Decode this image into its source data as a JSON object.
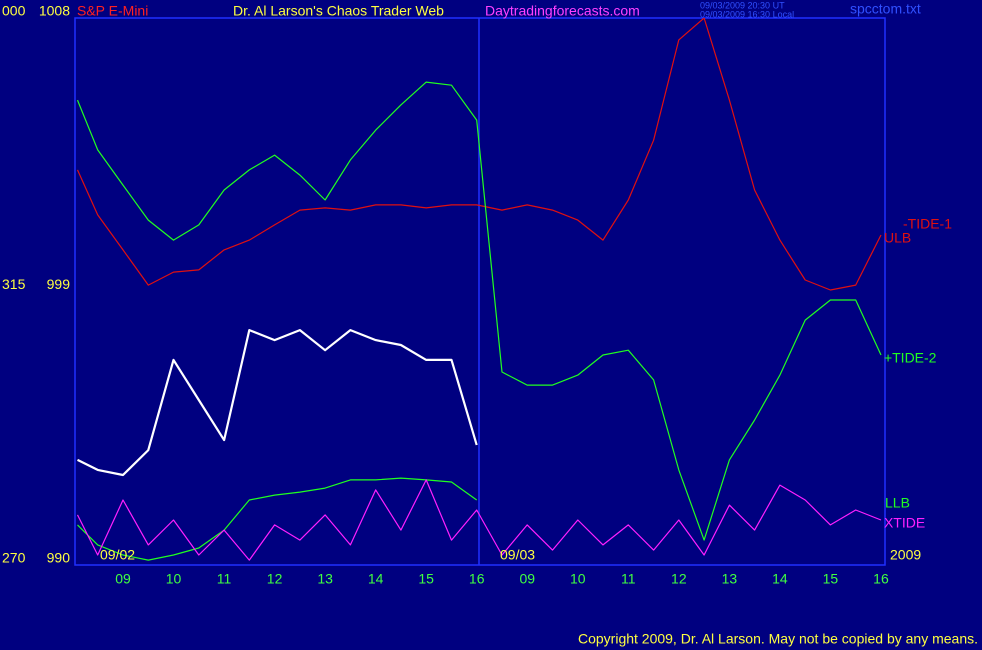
{
  "chart_data": {
    "type": "line",
    "instrument": "S&P E-Mini",
    "title": "Dr. Al Larson's Chaos Trader Web",
    "site": "Daytradingforecasts.com",
    "timestamps": [
      "09/03/2009 20:30 UT",
      "09/03/2009 16:30 Local"
    ],
    "file": "spcctom.txt",
    "copyright": "Copyright 2009, Dr. Al Larson. May not be copied by any means.",
    "date_labels": [
      "09/02",
      "09/03",
      "2009"
    ],
    "annotations": [
      "-TIDE-1"
    ],
    "xlim": [
      0.05,
      16.08
    ],
    "xticks": [
      {
        "value": 1,
        "label": "09"
      },
      {
        "value": 2,
        "label": "10"
      },
      {
        "value": 3,
        "label": "11"
      },
      {
        "value": 4,
        "label": "12"
      },
      {
        "value": 5,
        "label": "13"
      },
      {
        "value": 6,
        "label": "14"
      },
      {
        "value": 7,
        "label": "15"
      },
      {
        "value": 8,
        "label": "16"
      },
      {
        "value": 9,
        "label": "09"
      },
      {
        "value": 10,
        "label": "10"
      },
      {
        "value": 11,
        "label": "11"
      },
      {
        "value": 12,
        "label": "12"
      },
      {
        "value": 13,
        "label": "13"
      },
      {
        "value": 14,
        "label": "14"
      },
      {
        "value": 15,
        "label": "15"
      },
      {
        "value": 16,
        "label": "16"
      }
    ],
    "ylim": [
      990,
      1008
    ],
    "yticks": [
      990,
      999,
      1008
    ],
    "minor_yticks": [
      993,
      996,
      1002,
      1005
    ],
    "angle_ticks": [
      {
        "value": 1008,
        "label": "000"
      },
      {
        "value": 999,
        "label": "315"
      },
      {
        "value": 990,
        "label": "270"
      }
    ],
    "grid": true,
    "series": [
      {
        "name": "ULB",
        "color": "#e01010",
        "x": [
          0.1,
          0.5,
          1,
          1.5,
          2,
          2.5,
          3,
          3.5,
          4,
          4.5,
          5,
          5.5,
          6,
          6.5,
          7,
          7.5,
          8,
          8.5,
          9,
          9.5,
          10,
          10.5,
          11,
          11.5,
          12,
          12.5,
          13,
          13.5,
          14,
          14.5,
          15,
          15.5,
          16
        ],
        "values": [
          1003.0,
          1001.52,
          1000.37,
          999.21,
          999.64,
          999.71,
          1000.37,
          1000.69,
          1001.19,
          1001.68,
          1001.75,
          1001.68,
          1001.85,
          1001.85,
          1001.75,
          1001.85,
          1001.85,
          1001.68,
          1001.85,
          1001.68,
          1001.35,
          1000.69,
          1002.01,
          1003.98,
          1007.28,
          1008.0,
          1005.3,
          1002.34,
          1000.69,
          999.38,
          999.05,
          999.21,
          1000.86
        ]
      },
      {
        "name": "+TIDE-2",
        "color": "#20ff20",
        "x": [
          0.1,
          0.5,
          1,
          1.5,
          2,
          2.5,
          3,
          3.5,
          4,
          4.5,
          5,
          5.5,
          6,
          6.5,
          7,
          7.5,
          8,
          8.5,
          9,
          9.5,
          10,
          10.5,
          11,
          11.5,
          12,
          12.5,
          13,
          13.5,
          14,
          14.5,
          15,
          15.5,
          16
        ],
        "values": [
          1005.3,
          1003.66,
          1002.5,
          1001.35,
          1000.69,
          1001.19,
          1002.34,
          1003.0,
          1003.49,
          1002.83,
          1002.01,
          1003.33,
          1004.31,
          1005.14,
          1005.89,
          1005.79,
          1004.64,
          996.35,
          995.92,
          995.92,
          996.25,
          996.91,
          997.07,
          996.09,
          993.13,
          990.82,
          993.46,
          994.77,
          996.25,
          998.06,
          998.72,
          998.72,
          996.91
        ]
      },
      {
        "name": "LLB",
        "color": "#20ff20",
        "x": [
          0.1,
          0.5,
          1,
          1.5,
          2,
          2.5,
          3,
          3.5,
          4,
          4.5,
          5,
          5.5,
          6,
          6.5,
          7,
          7.5,
          8
        ],
        "values": [
          991.32,
          990.66,
          990.33,
          990.16,
          990.33,
          990.56,
          991.15,
          992.14,
          992.3,
          992.4,
          992.53,
          992.8,
          992.8,
          992.86,
          992.8,
          992.73,
          992.14
        ]
      },
      {
        "name": "XTIDE",
        "color": "#ff20ff",
        "x": [
          0.1,
          0.5,
          1,
          1.5,
          2,
          2.5,
          3,
          3.5,
          4,
          4.5,
          5,
          5.5,
          6,
          6.5,
          7,
          7.5,
          8,
          8.5,
          9,
          9.5,
          10,
          10.5,
          11,
          11.5,
          12,
          12.5,
          13,
          13.5,
          14,
          14.5,
          15,
          15.5,
          16
        ],
        "values": [
          991.65,
          990.33,
          992.14,
          990.66,
          991.48,
          990.33,
          991.15,
          990.16,
          991.32,
          990.82,
          991.65,
          990.66,
          992.47,
          991.15,
          992.8,
          990.82,
          991.81,
          990.33,
          991.32,
          990.49,
          991.48,
          990.66,
          991.32,
          990.49,
          991.48,
          990.33,
          991.97,
          991.15,
          992.63,
          992.14,
          991.32,
          991.81,
          991.48
        ]
      },
      {
        "color": "#ffffff",
        "x": [
          0.1,
          0.5,
          1,
          1.5,
          2,
          2.5,
          3,
          3.5,
          4,
          4.5,
          5,
          5.5,
          6,
          6.5,
          7,
          7.5,
          8
        ],
        "values": [
          993.46,
          993.13,
          992.96,
          993.78,
          996.75,
          995.43,
          994.11,
          997.73,
          997.4,
          997.73,
          997.07,
          997.73,
          997.4,
          997.24,
          996.75,
          996.75,
          993.95
        ]
      }
    ]
  }
}
